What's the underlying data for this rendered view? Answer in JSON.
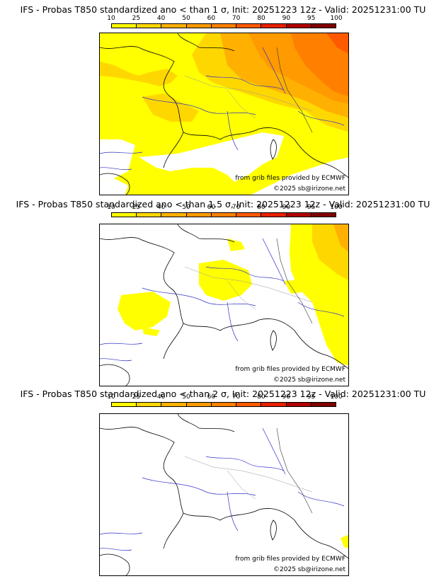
{
  "colorbar": {
    "ticks": [
      "10",
      "25",
      "40",
      "50",
      "60",
      "70",
      "80",
      "90",
      "95",
      "100"
    ],
    "colors": [
      "#ffff00",
      "#ffd700",
      "#ffb000",
      "#ff9a00",
      "#ff8000",
      "#ff5a00",
      "#e62000",
      "#b00000",
      "#800000"
    ]
  },
  "panels": [
    {
      "title": "IFS - Probas T850  standardized ano < than 1 σ, Init: 20251223 12z - Valid: 20251231:00 TU",
      "credit_source": "from grib files provided by ECMWF",
      "credit_copyright": "©2025 sb@irizone.net"
    },
    {
      "title": "IFS - Probas T850  standardized ano < than 1.5 σ, Init: 20251223 12z - Valid: 20251231:00 TU",
      "credit_source": "from grib files provided by ECMWF",
      "credit_copyright": "©2025 sb@irizone.net"
    },
    {
      "title": "IFS - Probas T850  standardized ano < than 2 σ, Init: 20251223 12z - Valid: 20251231:00 TU",
      "credit_source": "from grib files provided by ECMWF",
      "credit_copyright": "©2025 sb@irizone.net"
    }
  ]
}
